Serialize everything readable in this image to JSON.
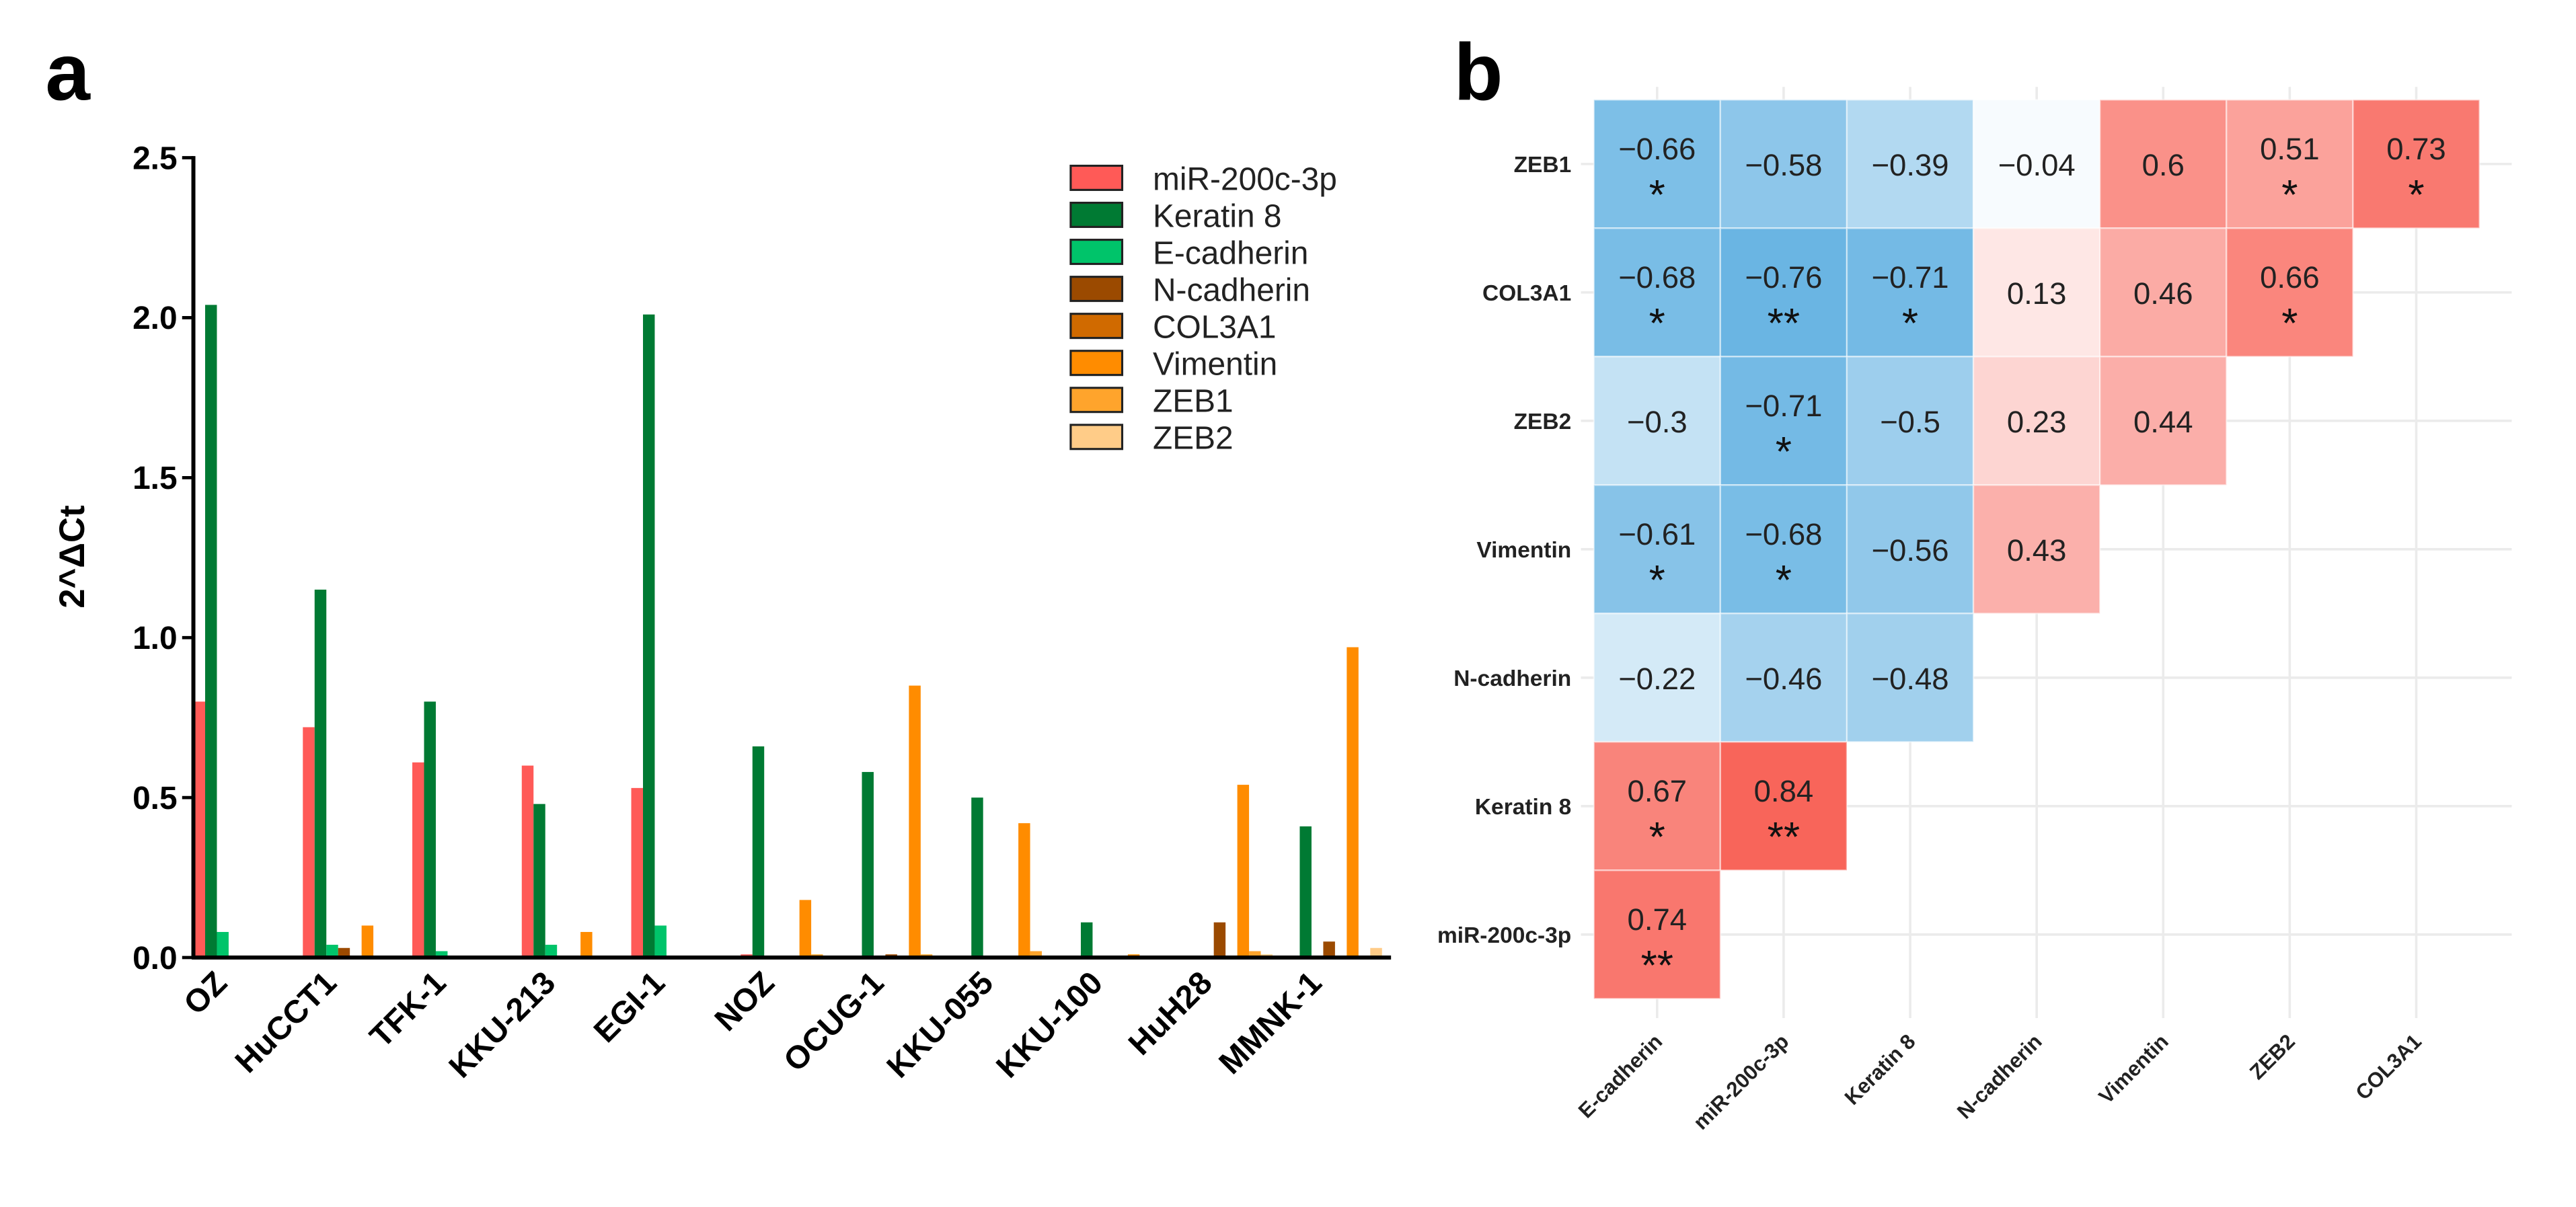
{
  "panel_labels": {
    "a": "a",
    "b": "b"
  },
  "chart_data": [
    {
      "type": "bar",
      "panel": "a",
      "title": "",
      "xlabel": "",
      "ylabel": "2^ΔCt",
      "ylim": [
        0,
        2.5
      ],
      "yticks": [
        "0.0",
        "0.5",
        "1.0",
        "1.5",
        "2.0",
        "2.5"
      ],
      "ytick_values": [
        0,
        0.5,
        1.0,
        1.5,
        2.0,
        2.5
      ],
      "legend_position": "top-right",
      "categories": [
        "OZ",
        "HuCCT1",
        "TFK-1",
        "KKU-213",
        "EGI-1",
        "NOZ",
        "OCUG-1",
        "KKU-055",
        "KKU-100",
        "HuH28",
        "MMNK-1"
      ],
      "series": [
        {
          "name": "miR-200c-3p",
          "color": "#FF5A57",
          "values": [
            0.8,
            0.72,
            0.61,
            0.6,
            0.53,
            0.01,
            0,
            0,
            0,
            0,
            0
          ]
        },
        {
          "name": "Keratin 8",
          "color": "#007A33",
          "values": [
            2.04,
            1.15,
            0.8,
            0.48,
            2.01,
            0.66,
            0.58,
            0.5,
            0.11,
            0,
            0.41
          ]
        },
        {
          "name": "E-cadherin",
          "color": "#00C46A",
          "values": [
            0.08,
            0.04,
            0.02,
            0.04,
            0.1,
            0,
            0,
            0,
            0,
            0,
            0
          ]
        },
        {
          "name": "N-cadherin",
          "color": "#9B4A00",
          "values": [
            0,
            0.03,
            0,
            0,
            0,
            0,
            0.01,
            0,
            0,
            0.11,
            0.05
          ]
        },
        {
          "name": "COL3A1",
          "color": "#D06A00",
          "values": [
            0,
            0,
            0,
            0,
            0,
            0,
            0,
            0,
            0,
            0,
            0
          ]
        },
        {
          "name": "Vimentin",
          "color": "#FF8C00",
          "values": [
            0,
            0.1,
            0,
            0.08,
            0,
            0.18,
            0.85,
            0.42,
            0.01,
            0.54,
            0.97
          ]
        },
        {
          "name": "ZEB1",
          "color": "#FFA42C",
          "values": [
            0,
            0,
            0,
            0,
            0,
            0.01,
            0.01,
            0.02,
            0,
            0.02,
            0
          ]
        },
        {
          "name": "ZEB2",
          "color": "#FFCC88",
          "values": [
            0,
            0,
            0,
            0,
            0,
            0,
            0,
            0,
            0,
            0.01,
            0.03
          ]
        }
      ]
    },
    {
      "type": "heatmap",
      "panel": "b",
      "title": "",
      "rows": [
        "ZEB1",
        "COL3A1",
        "ZEB2",
        "Vimentin",
        "N-cadherin",
        "Keratin 8",
        "miR-200c-3p"
      ],
      "columns": [
        "E-cadherin",
        "miR-200c-3p",
        "Keratin 8",
        "N-cadherin",
        "Vimentin",
        "ZEB2",
        "COL3A1"
      ],
      "values": [
        [
          -0.66,
          -0.58,
          -0.39,
          -0.04,
          0.6,
          0.51,
          0.73
        ],
        [
          -0.68,
          -0.76,
          -0.71,
          0.13,
          0.46,
          0.66,
          null
        ],
        [
          -0.3,
          -0.71,
          -0.5,
          0.23,
          0.44,
          null,
          null
        ],
        [
          -0.61,
          -0.68,
          -0.56,
          0.43,
          null,
          null,
          null
        ],
        [
          -0.22,
          -0.46,
          -0.48,
          null,
          null,
          null,
          null
        ],
        [
          0.67,
          0.84,
          null,
          null,
          null,
          null,
          null
        ],
        [
          0.74,
          null,
          null,
          null,
          null,
          null,
          null
        ]
      ],
      "labels": [
        [
          "−0.66",
          "−0.58",
          "−0.39",
          "−0.04",
          "0.6",
          "0.51",
          "0.73"
        ],
        [
          "−0.68",
          "−0.76",
          "−0.71",
          "0.13",
          "0.46",
          "0.66",
          null
        ],
        [
          "−0.3",
          "−0.71",
          "−0.5",
          "0.23",
          "0.44",
          null,
          null
        ],
        [
          "−0.61",
          "−0.68",
          "−0.56",
          "0.43",
          null,
          null,
          null
        ],
        [
          "−0.22",
          "−0.46",
          "−0.48",
          null,
          null,
          null,
          null
        ],
        [
          "0.67",
          "0.84",
          null,
          null,
          null,
          null,
          null
        ],
        [
          "0.74",
          null,
          null,
          null,
          null,
          null,
          null
        ]
      ],
      "significance": [
        [
          "*",
          "",
          "",
          "",
          "",
          "*",
          "*"
        ],
        [
          "*",
          "**",
          "*",
          "",
          "",
          "*",
          null
        ],
        [
          "",
          "*",
          "",
          "",
          "",
          null,
          null
        ],
        [
          "*",
          "*",
          "",
          "",
          null,
          null,
          null
        ],
        [
          "",
          "",
          "",
          null,
          null,
          null,
          null
        ],
        [
          "*",
          "**",
          null,
          null,
          null,
          null,
          null
        ],
        [
          "**",
          null,
          null,
          null,
          null,
          null,
          null
        ]
      ],
      "color_negative": "#5AADE0",
      "color_positive": "#F8655A",
      "grid": true
    }
  ]
}
